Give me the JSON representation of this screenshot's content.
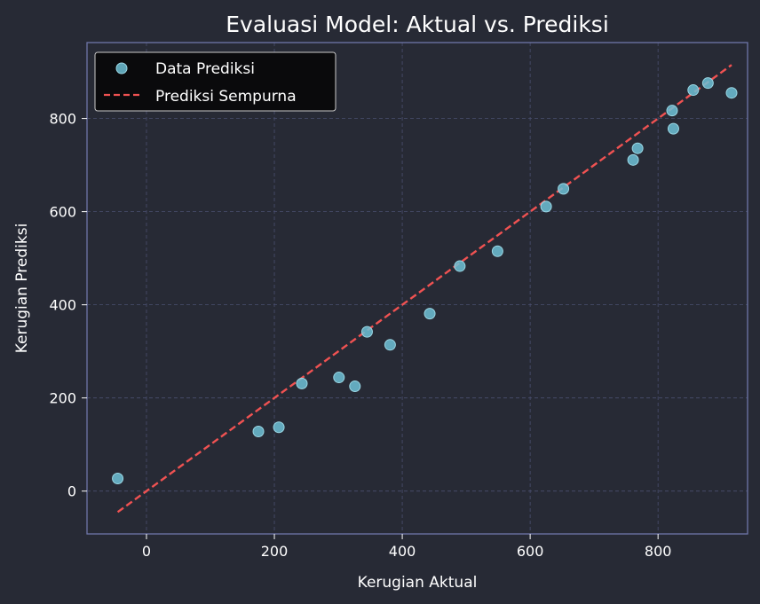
{
  "chart_data": {
    "type": "scatter",
    "title": "Evaluasi Model: Aktual vs. Prediksi",
    "xlabel": "Kerugian Aktual",
    "ylabel": "Kerugian Prediksi",
    "xlim": [
      -93,
      940
    ],
    "ylim": [
      -92,
      963
    ],
    "xticks": [
      0,
      200,
      400,
      600,
      800
    ],
    "yticks": [
      0,
      200,
      400,
      600,
      800
    ],
    "grid": true,
    "legend_position": "top-left",
    "series": [
      {
        "name": "Data Prediksi",
        "kind": "scatter",
        "color": "#6ec1d6",
        "points": [
          {
            "x": -45,
            "y": 27
          },
          {
            "x": 175,
            "y": 128
          },
          {
            "x": 207,
            "y": 137
          },
          {
            "x": 243,
            "y": 231
          },
          {
            "x": 301,
            "y": 244
          },
          {
            "x": 326,
            "y": 225
          },
          {
            "x": 345,
            "y": 342
          },
          {
            "x": 381,
            "y": 314
          },
          {
            "x": 443,
            "y": 381
          },
          {
            "x": 490,
            "y": 483
          },
          {
            "x": 549,
            "y": 515
          },
          {
            "x": 625,
            "y": 611
          },
          {
            "x": 652,
            "y": 649
          },
          {
            "x": 761,
            "y": 711
          },
          {
            "x": 768,
            "y": 736
          },
          {
            "x": 822,
            "y": 817
          },
          {
            "x": 824,
            "y": 778
          },
          {
            "x": 855,
            "y": 861
          },
          {
            "x": 878,
            "y": 876
          },
          {
            "x": 915,
            "y": 855
          }
        ]
      },
      {
        "name": "Prediksi Sempurna",
        "kind": "line",
        "style": "dashed",
        "color": "#f05252",
        "points": [
          {
            "x": -45,
            "y": -45
          },
          {
            "x": 915,
            "y": 915
          }
        ]
      }
    ]
  }
}
